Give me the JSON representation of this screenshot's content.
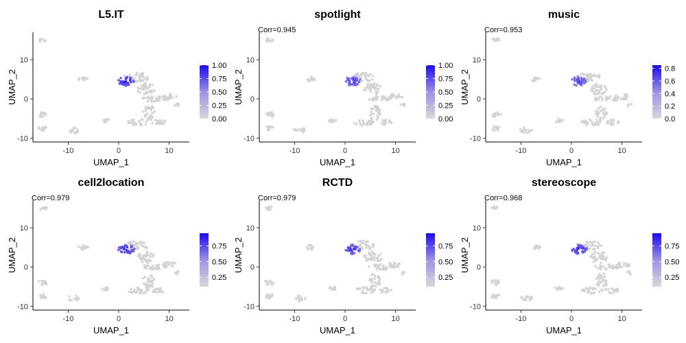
{
  "chart_data": [
    {
      "type": "scatter",
      "title": "L5.IT",
      "subtitle": "",
      "xlabel": "UMAP_1",
      "ylabel": "UMAP_2",
      "xlim": [
        -17,
        14
      ],
      "ylim": [
        -11,
        17
      ],
      "xticks": [
        -10,
        0,
        10
      ],
      "yticks": [
        -10,
        0,
        10
      ],
      "colorbar": {
        "min": 0,
        "max": 1.0,
        "ticks": [
          "0.00",
          "0.25",
          "0.50",
          "0.75",
          "1.00"
        ],
        "low_color": "#d9d9d9",
        "high_color": "#1a0af0"
      },
      "hotspot_level": 1.0,
      "grid": false
    },
    {
      "type": "scatter",
      "title": "spotlight",
      "subtitle": "Corr=0.945",
      "xlabel": "UMAP_1",
      "ylabel": "UMAP_2",
      "xlim": [
        -17,
        14
      ],
      "ylim": [
        -11,
        17
      ],
      "xticks": [
        -10,
        0,
        10
      ],
      "yticks": [
        -10,
        0,
        10
      ],
      "colorbar": {
        "min": 0,
        "max": 1.0,
        "ticks": [
          "0.00",
          "0.25",
          "0.50",
          "0.75",
          "1.00"
        ],
        "low_color": "#d9d9d9",
        "high_color": "#1a0af0"
      },
      "hotspot_level": 0.8,
      "grid": false
    },
    {
      "type": "scatter",
      "title": "music",
      "subtitle": "Corr=0.953",
      "xlabel": "UMAP_1",
      "ylabel": "UMAP_2",
      "xlim": [
        -17,
        14
      ],
      "ylim": [
        -11,
        17
      ],
      "xticks": [
        -10,
        0,
        10
      ],
      "yticks": [
        -10,
        0,
        10
      ],
      "colorbar": {
        "min": 0,
        "max": 0.85,
        "ticks": [
          "0.0",
          "0.2",
          "0.4",
          "0.6",
          "0.8"
        ],
        "low_color": "#d9d9d9",
        "high_color": "#1a0af0"
      },
      "hotspot_level": 0.75,
      "grid": false
    },
    {
      "type": "scatter",
      "title": "cell2location",
      "subtitle": "Corr=0.979",
      "xlabel": "UMAP_1",
      "ylabel": "UMAP_2",
      "xlim": [
        -17,
        14
      ],
      "ylim": [
        -11,
        17
      ],
      "xticks": [
        -10,
        0,
        10
      ],
      "yticks": [
        -10,
        0,
        10
      ],
      "colorbar": {
        "min": 0.1,
        "max": 0.95,
        "ticks": [
          "0.25",
          "0.50",
          "0.75"
        ],
        "low_color": "#d9d9d9",
        "high_color": "#1a0af0"
      },
      "hotspot_level": 0.95,
      "grid": false
    },
    {
      "type": "scatter",
      "title": "RCTD",
      "subtitle": "Corr=0.979",
      "xlabel": "UMAP_1",
      "ylabel": "UMAP_2",
      "xlim": [
        -17,
        14
      ],
      "ylim": [
        -11,
        17
      ],
      "xticks": [
        -10,
        0,
        10
      ],
      "yticks": [
        -10,
        0,
        10
      ],
      "colorbar": {
        "min": 0.1,
        "max": 0.95,
        "ticks": [
          "0.25",
          "0.50",
          "0.75"
        ],
        "low_color": "#d9d9d9",
        "high_color": "#1a0af0"
      },
      "hotspot_level": 0.85,
      "grid": false
    },
    {
      "type": "scatter",
      "title": "stereoscope",
      "subtitle": "Corr=0.968",
      "xlabel": "UMAP_1",
      "ylabel": "UMAP_2",
      "xlim": [
        -17,
        14
      ],
      "ylim": [
        -11,
        17
      ],
      "xticks": [
        -10,
        0,
        10
      ],
      "yticks": [
        -10,
        0,
        10
      ],
      "colorbar": {
        "min": 0.1,
        "max": 0.95,
        "ticks": [
          "0.25",
          "0.50",
          "0.75"
        ],
        "low_color": "#d9d9d9",
        "high_color": "#1a0af0"
      },
      "hotspot_level": 0.9,
      "grid": false
    }
  ],
  "clusters": [
    {
      "name": "c1",
      "cx": -15,
      "cy": 15,
      "rx": 0.8,
      "ry": 0.5,
      "n": 10
    },
    {
      "name": "c2",
      "cx": -15,
      "cy": -4,
      "rx": 1.0,
      "ry": 0.7,
      "n": 14
    },
    {
      "name": "c3",
      "cx": -15,
      "cy": -7.5,
      "rx": 0.9,
      "ry": 0.6,
      "n": 12
    },
    {
      "name": "c4",
      "cx": -9,
      "cy": -8,
      "rx": 1.2,
      "ry": 0.8,
      "n": 14
    },
    {
      "name": "c5",
      "cx": -7,
      "cy": 5,
      "rx": 1.0,
      "ry": 0.6,
      "n": 12
    },
    {
      "name": "c6",
      "cx": -2.5,
      "cy": -5.5,
      "rx": 0.8,
      "ry": 0.5,
      "n": 10
    },
    {
      "name": "c7",
      "cx": 3.5,
      "cy": 5.5,
      "rx": 2.5,
      "ry": 1.2,
      "n": 40
    },
    {
      "name": "c8",
      "cx": 5.5,
      "cy": 2.5,
      "rx": 1.8,
      "ry": 1.5,
      "n": 34
    },
    {
      "name": "c9",
      "cx": 7,
      "cy": 0,
      "rx": 2.5,
      "ry": 0.7,
      "n": 30
    },
    {
      "name": "c10",
      "cx": 10,
      "cy": 0.5,
      "rx": 1.5,
      "ry": 0.8,
      "n": 18
    },
    {
      "name": "c11",
      "cx": 6,
      "cy": -3.5,
      "rx": 1.2,
      "ry": 2.0,
      "n": 30
    },
    {
      "name": "c12",
      "cx": 4,
      "cy": -6,
      "rx": 2.2,
      "ry": 0.8,
      "n": 26
    },
    {
      "name": "c13",
      "cx": 8,
      "cy": -6,
      "rx": 1.5,
      "ry": 0.7,
      "n": 16
    },
    {
      "name": "c14",
      "cx": 11.5,
      "cy": -1.5,
      "rx": 0.5,
      "ry": 0.4,
      "n": 6
    }
  ],
  "hotspot": {
    "cx": 1.5,
    "cy": 4.5,
    "rx": 1.6,
    "ry": 1.2,
    "n": 34
  }
}
